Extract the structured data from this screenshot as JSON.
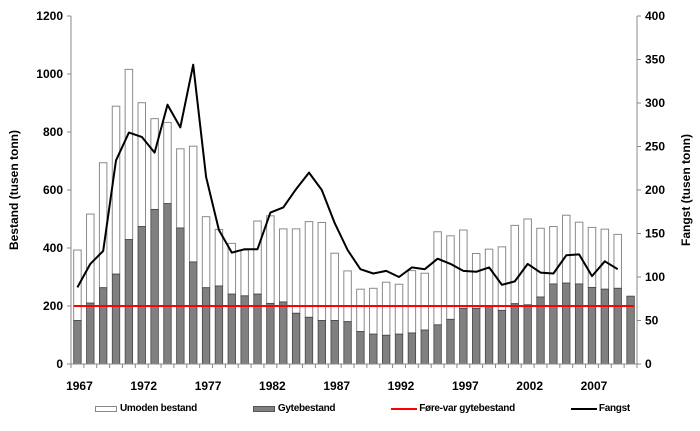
{
  "chart_data": {
    "type": "bar",
    "subtype": "stacked bar with line overlay, dual y-axis",
    "categories": [
      1967,
      1968,
      1969,
      1970,
      1971,
      1972,
      1973,
      1974,
      1975,
      1976,
      1977,
      1978,
      1979,
      1980,
      1981,
      1982,
      1983,
      1984,
      1985,
      1986,
      1987,
      1988,
      1989,
      1990,
      1991,
      1992,
      1993,
      1994,
      1995,
      1996,
      1997,
      1998,
      1999,
      2000,
      2001,
      2002,
      2003,
      2004,
      2005,
      2006,
      2007,
      2008,
      2009,
      2010
    ],
    "x_tick_labels": [
      "1967",
      "1972",
      "1977",
      "1982",
      "1987",
      "1992",
      "1997",
      "2002",
      "2007"
    ],
    "ylabel": "Bestand (tusen tonn)",
    "ylabel_right": "Fangst (tusen tonn)",
    "ylim": [
      0,
      1200
    ],
    "ylim_right": [
      0,
      400
    ],
    "y_ticks": [
      "0",
      "200",
      "400",
      "600",
      "800",
      "1000",
      "1200"
    ],
    "y_ticks_right": [
      "0",
      "50",
      "100",
      "150",
      "200",
      "250",
      "300",
      "350",
      "400"
    ],
    "grid": false,
    "legend_placement": "bottom",
    "series": [
      {
        "name": "Gytebestand",
        "type": "bar",
        "axis": "left",
        "color": "#808080",
        "values": [
          150,
          210,
          263,
          310,
          429,
          474,
          533,
          553,
          469,
          352,
          263,
          269,
          241,
          235,
          241,
          209,
          214,
          175,
          161,
          150,
          150,
          146,
          112,
          103,
          99,
          103,
          107,
          117,
          135,
          154,
          192,
          192,
          198,
          185,
          208,
          204,
          231,
          276,
          279,
          276,
          264,
          258,
          261,
          234
        ]
      },
      {
        "name": "Umoden bestand",
        "type": "bar",
        "axis": "left",
        "color": "#ffffff",
        "stacked_on": "Gytebestand",
        "values": [
          243,
          307,
          431,
          579,
          587,
          427,
          313,
          280,
          273,
          399,
          245,
          195,
          175,
          158,
          252,
          302,
          252,
          291,
          330,
          338,
          232,
          175,
          146,
          158,
          183,
          172,
          215,
          196,
          321,
          288,
          270,
          189,
          198,
          219,
          270,
          296,
          237,
          198,
          234,
          213,
          207,
          207,
          186,
          null
        ]
      },
      {
        "name": "Føre-var gytebestand",
        "type": "line",
        "axis": "left",
        "color": "#ff0000",
        "value": 200
      },
      {
        "name": "Fangst",
        "type": "line",
        "axis": "right",
        "color": "#000000",
        "values": [
          88,
          115,
          130,
          234,
          266,
          261,
          243,
          298,
          272,
          344,
          215,
          154,
          128,
          132,
          132,
          174,
          180,
          201,
          220,
          200,
          162,
          131,
          109,
          104,
          107,
          100,
          111,
          109,
          121,
          115,
          107,
          106,
          111,
          91,
          95,
          115,
          105,
          104,
          125,
          126,
          101,
          118,
          109,
          null
        ]
      }
    ]
  }
}
